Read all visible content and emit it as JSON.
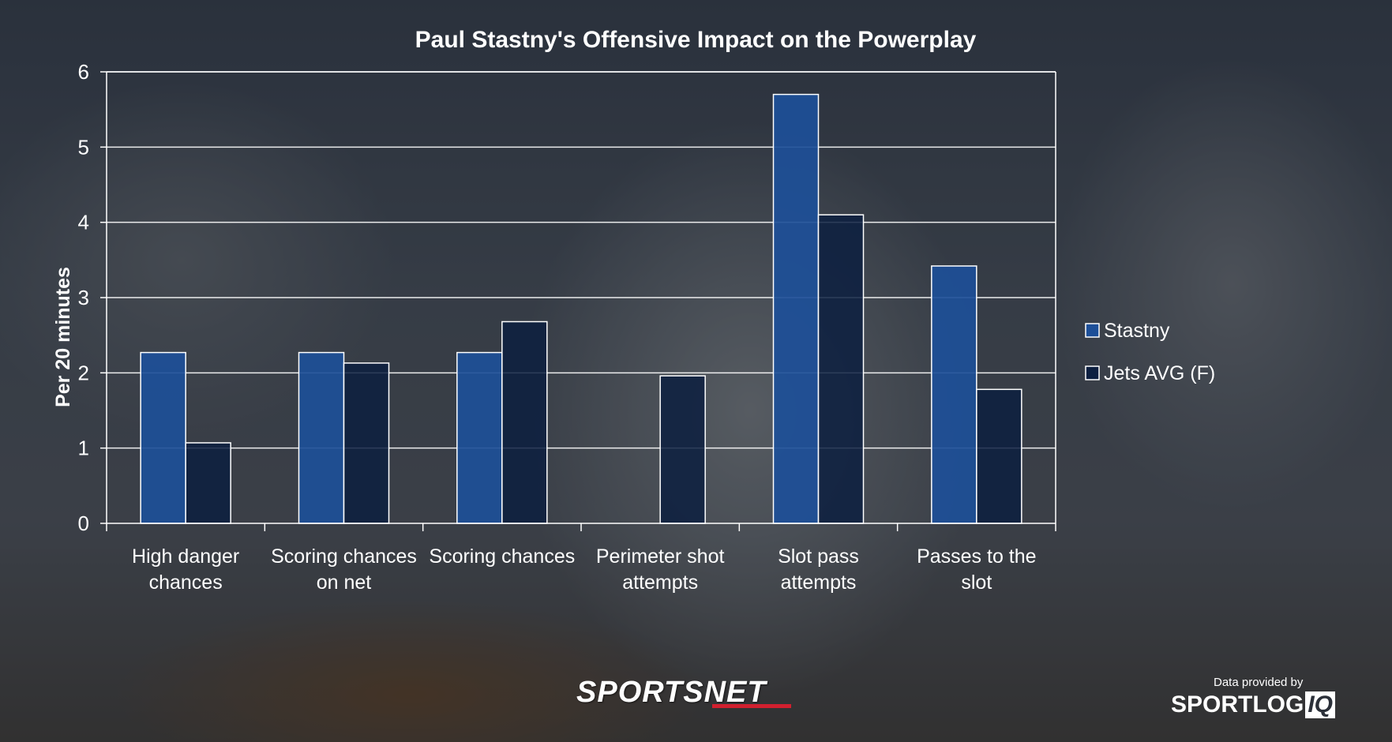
{
  "chart_data": {
    "type": "bar",
    "title": "Paul Stastny's Offensive Impact on the Powerplay",
    "ylabel": "Per 20 minutes",
    "ylim": [
      0,
      6
    ],
    "yticks": [
      0,
      1,
      2,
      3,
      4,
      5,
      6
    ],
    "grid": true,
    "legend_position": "right",
    "categories": [
      [
        "High danger",
        "chances"
      ],
      [
        "Scoring chances",
        "on net"
      ],
      [
        "Scoring chances"
      ],
      [
        "Perimeter shot",
        "attempts"
      ],
      [
        "Slot pass",
        "attempts"
      ],
      [
        "Passes to the",
        "slot"
      ]
    ],
    "series": [
      {
        "name": "Stastny",
        "color": "#1d4f98",
        "values": [
          2.27,
          2.27,
          2.27,
          0,
          5.7,
          3.42
        ]
      },
      {
        "name": "Jets AVG (F)",
        "color": "#0c1f40",
        "values": [
          1.07,
          2.13,
          2.68,
          1.96,
          4.1,
          1.78
        ]
      }
    ]
  },
  "branding": {
    "sportsnet": "SPORTSNET",
    "provided_by": "Data provided by",
    "sportlogiq_main": "SPORTLOG",
    "sportlogiq_iq": "IQ"
  }
}
